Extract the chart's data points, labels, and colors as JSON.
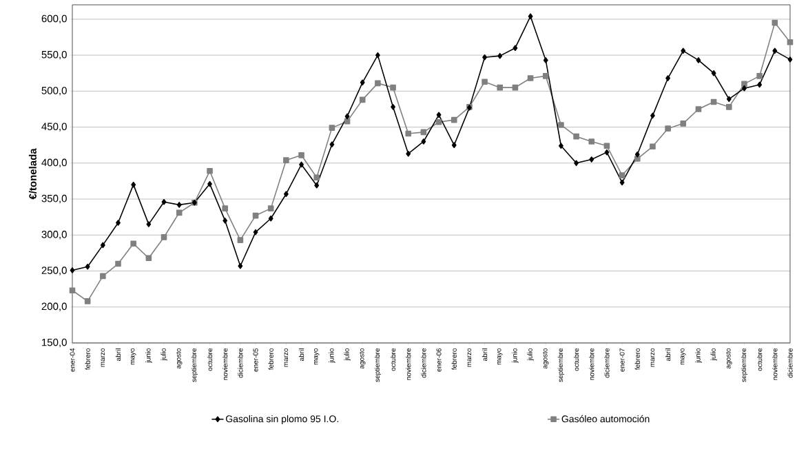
{
  "chart_data": {
    "type": "line",
    "ylabel": "€/tonelada",
    "categories": [
      "ener-04",
      "febrero",
      "marzo",
      "abril",
      "mayo",
      "junio",
      "julio",
      "agosto",
      "septiembre",
      "octubre",
      "noviembre",
      "diciembre",
      "ener-05",
      "febrero",
      "marzo",
      "abril",
      "mayo",
      "junio",
      "julio",
      "agosto",
      "septiembre",
      "octubre",
      "noviembre",
      "diciembre",
      "ener-06",
      "febrero",
      "marzo",
      "abril",
      "mayo",
      "junio",
      "julio",
      "agosto",
      "septiembre",
      "octubre",
      "noviembre",
      "diciembre",
      "ener-07",
      "febrero",
      "marzo",
      "abril",
      "mayo",
      "junio",
      "julio",
      "agosto",
      "septiembre",
      "octubre",
      "noviembre",
      "diciembre"
    ],
    "series": [
      {
        "name": "Gasolina sin plomo 95 I.O.",
        "color": "#000000",
        "marker": "diamond",
        "values": [
          251,
          256,
          286,
          317,
          370,
          315,
          346,
          342,
          345,
          371,
          320,
          257,
          304,
          323,
          357,
          398,
          369,
          426,
          465,
          512,
          550,
          478,
          413,
          430,
          467,
          425,
          477,
          547,
          549,
          560,
          604,
          543,
          424,
          400,
          405,
          415,
          373,
          412,
          466,
          518,
          556,
          543,
          525,
          489,
          504,
          509,
          556,
          544
        ]
      },
      {
        "name": "Gasóleo automoción",
        "color": "#808080",
        "marker": "square",
        "values": [
          223,
          208,
          243,
          260,
          288,
          268,
          297,
          331,
          345,
          389,
          337,
          293,
          327,
          337,
          404,
          411,
          380,
          449,
          458,
          488,
          511,
          505,
          441,
          443,
          457,
          460,
          478,
          513,
          505,
          505,
          518,
          521,
          453,
          437,
          430,
          424,
          383,
          406,
          423,
          448,
          455,
          475,
          485,
          478,
          510,
          521,
          595,
          568
        ]
      }
    ],
    "ylim": [
      150,
      620
    ],
    "yticks": [
      {
        "value": 150,
        "label": "150,0"
      },
      {
        "value": 200,
        "label": "200,0"
      },
      {
        "value": 250,
        "label": "250,0"
      },
      {
        "value": 300,
        "label": "300,0"
      },
      {
        "value": 350,
        "label": "350,0"
      },
      {
        "value": 400,
        "label": "400,0"
      },
      {
        "value": 450,
        "label": "450,0"
      },
      {
        "value": 500,
        "label": "500,0"
      },
      {
        "value": 550,
        "label": "550,0"
      },
      {
        "value": 600,
        "label": "600,0"
      }
    ],
    "grid": "y",
    "legend": "bottom"
  }
}
